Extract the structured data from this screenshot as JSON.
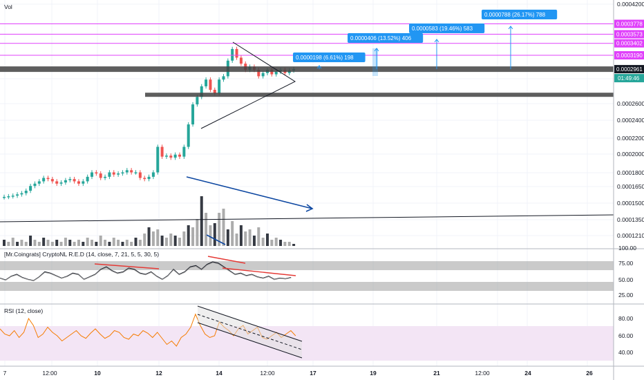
{
  "header": {
    "vol_label": "Vol"
  },
  "price_axis": {
    "ticks": [
      "0.0004200",
      "0.0002600",
      "0.0002400",
      "0.0002200",
      "0.0002000",
      "0.0001800",
      "0.0001650",
      "0.0001500",
      "0.0001350",
      "0.0001210"
    ],
    "levels": [
      {
        "label": "0.0003778",
        "color": "#e040fb"
      },
      {
        "label": "0.0003573",
        "color": "#e040fb"
      },
      {
        "label": "0.0003402",
        "color": "#e040fb"
      },
      {
        "label": "0.0003190",
        "color": "#e040fb"
      },
      {
        "label": "0.0002961",
        "color": "#131722"
      }
    ],
    "last_price": {
      "label": "0.0002961",
      "timer": "01:49:46",
      "color": "#26a69a"
    }
  },
  "targets": [
    {
      "label": "0.0000198 (6.61%) 198"
    },
    {
      "label": "0.0000406 (13.52%) 406"
    },
    {
      "label": "0.0000583 (19.46%) 583"
    },
    {
      "label": "0.0000788 (26.17%) 788"
    }
  ],
  "indicators": {
    "red": {
      "title": "[Mr.Coingrats] CryptoNL R.E.D (14, close, 7, 21, 5, 5, 30, 5)",
      "ticks": [
        "100.00",
        "75.00",
        "50.00",
        "25.00"
      ]
    },
    "rsi": {
      "title": "RSI (12, close)",
      "ticks": [
        "80.00",
        "60.00",
        "40.00"
      ]
    }
  },
  "time_axis": {
    "ticks": [
      "7",
      "12:00",
      "10",
      "12:00",
      "12",
      "14",
      "12:00",
      "17",
      "19",
      "21",
      "12:00",
      "24",
      "26"
    ]
  },
  "colors": {
    "up": "#26a69a",
    "down": "#ef5350",
    "magenta": "#e040fb",
    "blue": "#0d47a1",
    "target": "#2196f3",
    "rsi": "#f57c00",
    "rsi_band": "#f3e5f5"
  },
  "chart_data": {
    "type": "candlestick",
    "title": "",
    "y_scale": "log",
    "ylim": [
      0.000118,
      0.000425
    ],
    "close_series_approx": [
      0.000149,
      0.0001495,
      0.00015,
      0.000151,
      0.000152,
      0.000154,
      0.000158,
      0.00016,
      0.000162,
      0.000165,
      0.000164,
      0.000162,
      0.00016,
      0.000161,
      0.000163,
      0.000164,
      0.000162,
      0.00016,
      0.000162,
      0.000166,
      0.00017,
      0.000169,
      0.000165,
      0.000166,
      0.00017,
      0.000168,
      0.000169,
      0.00017,
      0.000172,
      0.00017,
      0.00017,
      0.000165,
      0.000164,
      0.000166,
      0.00017,
      0.000195,
      0.000185,
      0.000186,
      0.000184,
      0.000187,
      0.000185,
      0.000195,
      0.00022,
      0.000245,
      0.000255,
      0.00027,
      0.00028,
      0.000265,
      0.00026,
      0.00028,
      0.000285,
      0.00031,
      0.00033,
      0.000315,
      0.000305,
      0.000295,
      0.0003,
      0.000295,
      0.000285,
      0.00029,
      0.000295,
      0.000288,
      0.000292,
      0.000295,
      0.00029,
      0.000294,
      0.0002961
    ],
    "volume_approx": [
      3,
      2,
      4,
      2,
      3,
      2,
      5,
      3,
      2,
      4,
      3,
      2,
      3,
      2,
      4,
      3,
      2,
      3,
      2,
      4,
      3,
      2,
      5,
      3,
      2,
      4,
      3,
      2,
      3,
      2,
      4,
      3,
      6,
      9,
      7,
      8,
      5,
      4,
      6,
      5,
      4,
      7,
      10,
      9,
      13,
      24,
      16,
      10,
      11,
      16,
      18,
      8,
      12,
      6,
      10,
      7,
      8,
      5,
      9,
      4,
      6,
      3,
      4,
      3,
      2,
      2,
      1
    ],
    "red_approx": [
      52,
      49,
      55,
      58,
      53,
      50,
      48,
      54,
      62,
      60,
      56,
      52,
      55,
      60,
      58,
      50,
      54,
      58,
      66,
      70,
      64,
      60,
      62,
      68,
      66,
      60,
      58,
      62,
      55,
      50,
      56,
      66,
      58,
      62,
      70,
      72,
      66,
      74,
      78,
      76,
      70,
      64,
      58,
      60,
      56,
      58,
      54,
      52,
      55,
      50,
      52,
      51,
      53
    ],
    "rsi_approx": [
      68,
      62,
      60,
      66,
      58,
      64,
      80,
      72,
      58,
      62,
      70,
      64,
      60,
      54,
      58,
      62,
      66,
      60,
      57,
      63,
      68,
      62,
      57,
      60,
      66,
      64,
      58,
      56,
      62,
      60,
      66,
      63,
      58,
      64,
      57,
      50,
      54,
      48,
      58,
      62,
      70,
      85,
      72,
      62,
      58,
      60,
      76,
      70,
      66,
      60,
      68,
      72,
      62,
      66,
      70,
      58,
      56,
      60,
      64,
      58,
      62,
      66,
      60
    ],
    "horizontal_levels": [
      0.0003778,
      0.0003573,
      0.0003402,
      0.000319,
      0.0002961
    ],
    "support_zones": [
      0.0002961,
      0.000258
    ]
  }
}
